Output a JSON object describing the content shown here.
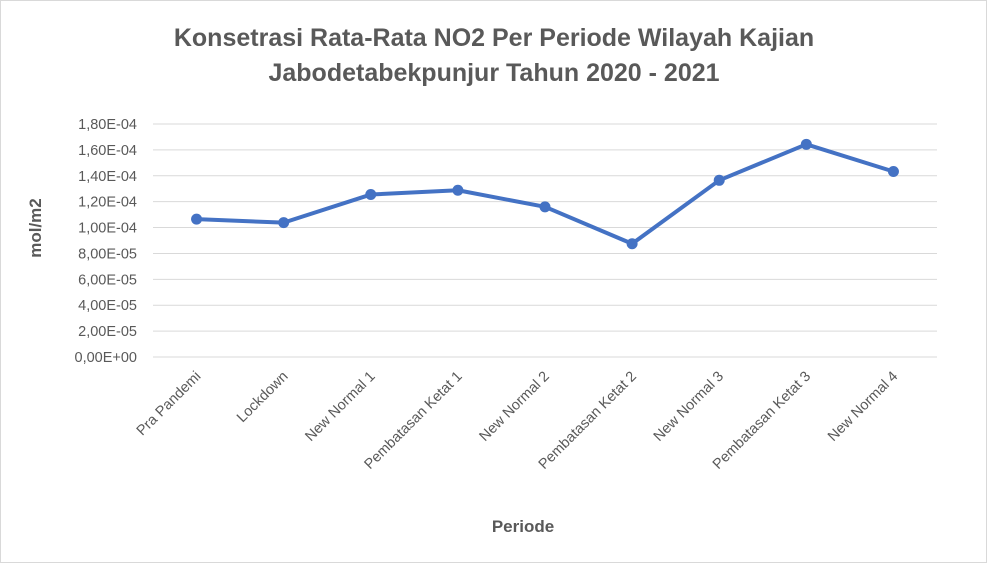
{
  "chart_data": {
    "type": "line",
    "title_lines": [
      "Konsetrasi Rata-Rata NO2 Per Periode Wilayah Kajian",
      "Jabodetabekpunjur Tahun 2020 - 2021"
    ],
    "xlabel": "Periode",
    "ylabel": "mol/m2",
    "categories": [
      "Pra Pandemi",
      "Lockdown",
      "New Normal 1",
      "Pembatasan Ketat 1",
      "New Normal 2",
      "Pembatasan Ketat 2",
      "New Normal 3",
      "Pembatasan Ketat 3",
      "New Normal 4"
    ],
    "series": [
      {
        "values": [
          0.0001065,
          0.0001038,
          0.0001255,
          0.0001288,
          0.000116,
          8.75e-05,
          0.0001365,
          0.0001643,
          0.0001433
        ]
      }
    ],
    "ylim": [
      0,
      0.00018
    ],
    "yticks": [
      0,
      2e-05,
      4e-05,
      6e-05,
      8e-05,
      0.0001,
      0.00012,
      0.00014,
      0.00016,
      0.00018
    ],
    "ytick_labels": [
      "0,00E+00",
      "2,00E-05",
      "4,00E-05",
      "6,00E-05",
      "8,00E-05",
      "1,00E-04",
      "1,20E-04",
      "1,40E-04",
      "1,60E-04",
      "1,80E-04"
    ],
    "grid": true,
    "legend": "none",
    "colors": {
      "line": "#4472c4",
      "grid": "#d9d9d9",
      "text": "#595959"
    }
  }
}
